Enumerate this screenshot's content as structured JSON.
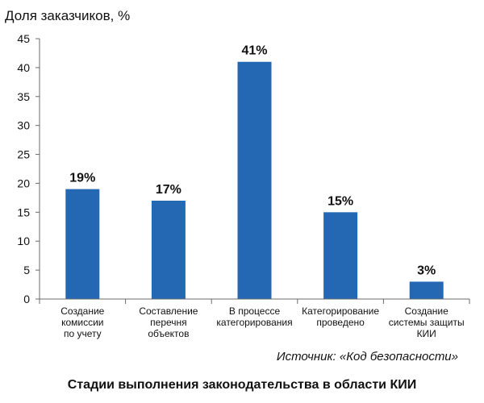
{
  "chart_data": {
    "type": "bar",
    "title": "Стадии выполнения законодательства в области КИИ",
    "ylabel": "Доля заказчиков, %",
    "xlabel": "",
    "ylim": [
      0,
      45
    ],
    "yticks": [
      0,
      5,
      10,
      15,
      20,
      25,
      30,
      35,
      40,
      45
    ],
    "grid": false,
    "categories": [
      [
        "Создание",
        "комиссии",
        "по учету"
      ],
      [
        "Составление",
        "перечня",
        "объектов"
      ],
      [
        "В процессе",
        "категорирования"
      ],
      [
        "Категорирование",
        "проведено"
      ],
      [
        "Создание",
        "системы защиты",
        "КИИ"
      ]
    ],
    "values": [
      19,
      17,
      41,
      15,
      3
    ],
    "data_labels": [
      "19%",
      "17%",
      "41%",
      "15%",
      "3%"
    ],
    "bar_color": "#2468b4",
    "source": "Источник: «Код безопасности»"
  }
}
